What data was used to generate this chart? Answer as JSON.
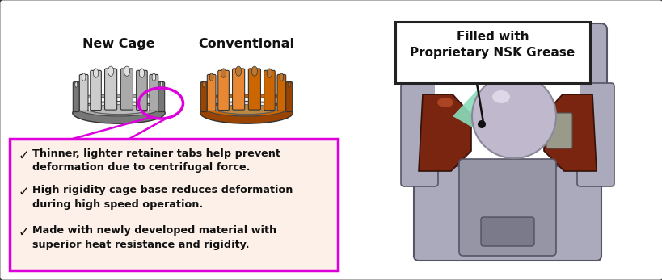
{
  "fig_width": 8.2,
  "fig_height": 3.47,
  "dpi": 100,
  "bg_color": "#ffffff",
  "border_color": "#333333",
  "title_new_cage": "New Cage",
  "title_conventional": "Conventional",
  "label_filled": "Filled with\nProprietary NSK Grease",
  "bullet_box_fill": "#fdf0e8",
  "bullet_box_edge": "#dd00dd",
  "bullets": [
    "Thinner, lighter retainer tabs help prevent\ndeformation due to centrifugal force.",
    "High rigidity cage base reduces deformation\nduring high speed operation.",
    "Made with newly developed material with\nsuperior heat resistance and rigidity."
  ],
  "gray_cage_color": "#aaaaaa",
  "gray_cage_dark": "#777777",
  "gray_cage_light": "#cccccc",
  "gray_base_dark": "#555555",
  "orange_cage_color": "#cc6600",
  "orange_cage_dark": "#994400",
  "orange_cage_light": "#e88833",
  "ellipse_color": "#dd00dd",
  "annotation_box_edge": "#222222",
  "annotation_box_fill": "#ffffff",
  "grease_color": "#88ddbb",
  "outer_ring_color": "#9999aa",
  "inner_ring_color": "#7a2510",
  "ball_color": "#c0b8cc",
  "housing_color": "#aaaabc"
}
